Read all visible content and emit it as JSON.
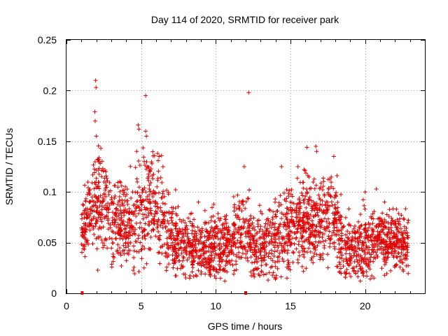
{
  "chart_data": {
    "type": "scatter",
    "title": "Day 114 of 2020, SRMTID for receiver park",
    "xlabel": "GPS time / hours",
    "ylabel": "SRMTID / TECUs",
    "xlim": [
      0,
      24
    ],
    "ylim": [
      0,
      0.25
    ],
    "grid": true,
    "marker": "+",
    "color": "#e00000",
    "x_ticks": [
      {
        "value": 0,
        "label": "0"
      },
      {
        "value": 5,
        "label": "5"
      },
      {
        "value": 10,
        "label": "10"
      },
      {
        "value": 15,
        "label": "15"
      },
      {
        "value": 20,
        "label": "20"
      }
    ],
    "y_ticks": [
      {
        "value": 0,
        "label": "0"
      },
      {
        "value": 0.05,
        "label": "0.05"
      },
      {
        "value": 0.1,
        "label": "0.1"
      },
      {
        "value": 0.15,
        "label": "0.15"
      },
      {
        "value": 0.2,
        "label": "0.2"
      },
      {
        "value": 0.25,
        "label": "0.25"
      }
    ],
    "gap_markers_x": [
      1.05,
      12.0
    ],
    "series": [
      {
        "name": "SRMTID",
        "x_range": [
          1.0,
          22.9
        ],
        "hourly_mean": [
          [
            1.0,
            0.065
          ],
          [
            1.5,
            0.08
          ],
          [
            2.0,
            0.095
          ],
          [
            2.5,
            0.09
          ],
          [
            3.0,
            0.075
          ],
          [
            3.5,
            0.07
          ],
          [
            4.0,
            0.072
          ],
          [
            4.5,
            0.07
          ],
          [
            5.0,
            0.08
          ],
          [
            5.5,
            0.085
          ],
          [
            6.0,
            0.09
          ],
          [
            6.5,
            0.07
          ],
          [
            7.0,
            0.055
          ],
          [
            7.5,
            0.05
          ],
          [
            8.0,
            0.045
          ],
          [
            8.5,
            0.045
          ],
          [
            9.0,
            0.045
          ],
          [
            9.5,
            0.045
          ],
          [
            10.0,
            0.045
          ],
          [
            10.5,
            0.048
          ],
          [
            11.0,
            0.052
          ],
          [
            11.5,
            0.058
          ],
          [
            12.0,
            0.062
          ],
          [
            12.5,
            0.05
          ],
          [
            13.0,
            0.045
          ],
          [
            13.5,
            0.048
          ],
          [
            14.0,
            0.055
          ],
          [
            14.5,
            0.06
          ],
          [
            15.0,
            0.068
          ],
          [
            15.5,
            0.072
          ],
          [
            16.0,
            0.075
          ],
          [
            16.5,
            0.07
          ],
          [
            17.0,
            0.07
          ],
          [
            17.5,
            0.075
          ],
          [
            18.0,
            0.08
          ],
          [
            18.5,
            0.045
          ],
          [
            19.0,
            0.04
          ],
          [
            19.5,
            0.045
          ],
          [
            20.0,
            0.05
          ],
          [
            20.5,
            0.055
          ],
          [
            21.0,
            0.055
          ],
          [
            21.5,
            0.05
          ],
          [
            22.0,
            0.05
          ],
          [
            22.5,
            0.05
          ],
          [
            22.9,
            0.048
          ]
        ],
        "spread": [
          [
            1.0,
            0.012
          ],
          [
            2.0,
            0.025
          ],
          [
            3.0,
            0.02
          ],
          [
            4.0,
            0.02
          ],
          [
            5.0,
            0.025
          ],
          [
            6.0,
            0.025
          ],
          [
            7.0,
            0.018
          ],
          [
            8.0,
            0.015
          ],
          [
            9.0,
            0.015
          ],
          [
            10.0,
            0.015
          ],
          [
            11.0,
            0.016
          ],
          [
            12.0,
            0.018
          ],
          [
            13.0,
            0.015
          ],
          [
            14.0,
            0.018
          ],
          [
            15.0,
            0.022
          ],
          [
            16.0,
            0.022
          ],
          [
            17.0,
            0.022
          ],
          [
            18.0,
            0.022
          ],
          [
            19.0,
            0.015
          ],
          [
            20.0,
            0.016
          ],
          [
            21.0,
            0.016
          ],
          [
            22.0,
            0.015
          ],
          [
            22.9,
            0.015
          ]
        ],
        "outliers": [
          [
            1.95,
            0.21
          ],
          [
            1.98,
            0.203
          ],
          [
            1.9,
            0.179
          ],
          [
            1.92,
            0.17
          ],
          [
            2.0,
            0.155
          ],
          [
            2.3,
            0.143
          ],
          [
            5.3,
            0.195
          ],
          [
            12.2,
            0.198
          ],
          [
            4.8,
            0.166
          ],
          [
            4.85,
            0.162
          ],
          [
            5.3,
            0.16
          ],
          [
            5.35,
            0.155
          ],
          [
            6.1,
            0.138
          ],
          [
            6.2,
            0.135
          ],
          [
            16.1,
            0.144
          ],
          [
            16.7,
            0.145
          ],
          [
            16.75,
            0.14
          ],
          [
            17.9,
            0.135
          ],
          [
            11.9,
            0.125
          ],
          [
            14.4,
            0.125
          ],
          [
            15.5,
            0.125
          ],
          [
            20.0,
            0.1
          ],
          [
            4.7,
            0.14
          ],
          [
            5.2,
            0.13
          ]
        ]
      }
    ]
  }
}
